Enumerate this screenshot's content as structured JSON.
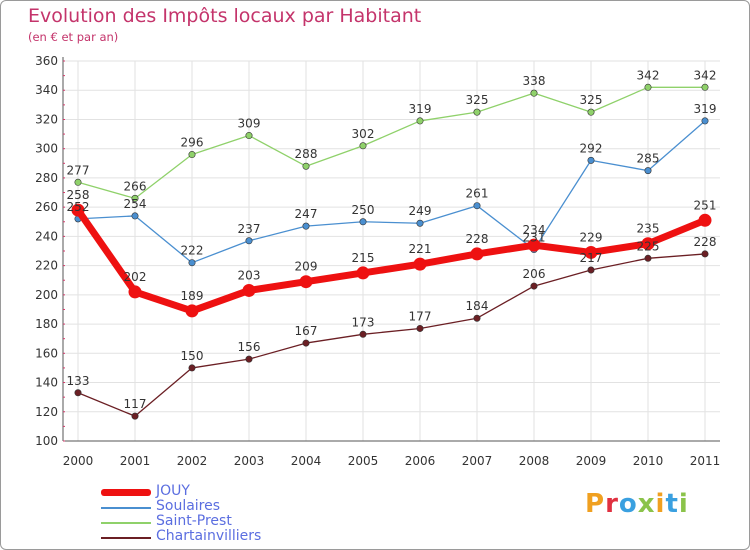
{
  "title": "Evolution des Impôts locaux par Habitant",
  "subtitle": "(en € et par an)",
  "logo": {
    "text": "Proxiti",
    "colors": [
      "#f0a020",
      "#e03040",
      "#3aa0e0",
      "#8bc34a",
      "#f0a020",
      "#3aa0e0",
      "#8bc34a"
    ]
  },
  "chart_data": {
    "type": "line",
    "x": [
      "2000",
      "2001",
      "2002",
      "2003",
      "2004",
      "2005",
      "2006",
      "2007",
      "2008",
      "2009",
      "2010",
      "2011"
    ],
    "ylim": [
      100,
      360
    ],
    "yticks": [
      "100",
      "120",
      "140",
      "160",
      "180",
      "200",
      "220",
      "240",
      "260",
      "280",
      "300",
      "320",
      "340",
      "360"
    ],
    "grid": true,
    "legend_position": "bottom-left",
    "series": [
      {
        "name": "Chartainvilliers",
        "color": "#6b1f24",
        "values": [
          133,
          117,
          150,
          156,
          167,
          173,
          177,
          184,
          206,
          217,
          225,
          228
        ],
        "labels": [
          "133",
          "117",
          "150",
          "156",
          "167",
          "173",
          "177",
          "184",
          "206",
          "217",
          "225",
          "228"
        ]
      },
      {
        "name": "Saint-Prest",
        "color": "#8fd16a",
        "values": [
          277,
          266,
          296,
          309,
          288,
          302,
          319,
          325,
          338,
          325,
          342,
          342
        ],
        "labels": [
          "277",
          "266",
          "296",
          "309",
          "288",
          "302",
          "319",
          "325",
          "338",
          "325",
          "342",
          "342"
        ]
      },
      {
        "name": "Soulaires",
        "color": "#4a8fd0",
        "values": [
          252,
          254,
          222,
          237,
          247,
          250,
          249,
          261,
          231,
          292,
          285,
          319
        ],
        "labels": [
          "252",
          "254",
          "222",
          "237",
          "247",
          "250",
          "249",
          "261",
          "231",
          "292",
          "285",
          "319"
        ]
      },
      {
        "name": "JOUY",
        "color": "#ee1111",
        "values": [
          258,
          202,
          189,
          203,
          209,
          215,
          221,
          228,
          234,
          229,
          235,
          251
        ],
        "labels": [
          "258",
          "202",
          "189",
          "203",
          "209",
          "215",
          "221",
          "228",
          "234",
          "229",
          "235",
          "251"
        ]
      }
    ],
    "legend": [
      "JOUY",
      "Soulaires",
      "Saint-Prest",
      "Chartainvilliers"
    ]
  }
}
